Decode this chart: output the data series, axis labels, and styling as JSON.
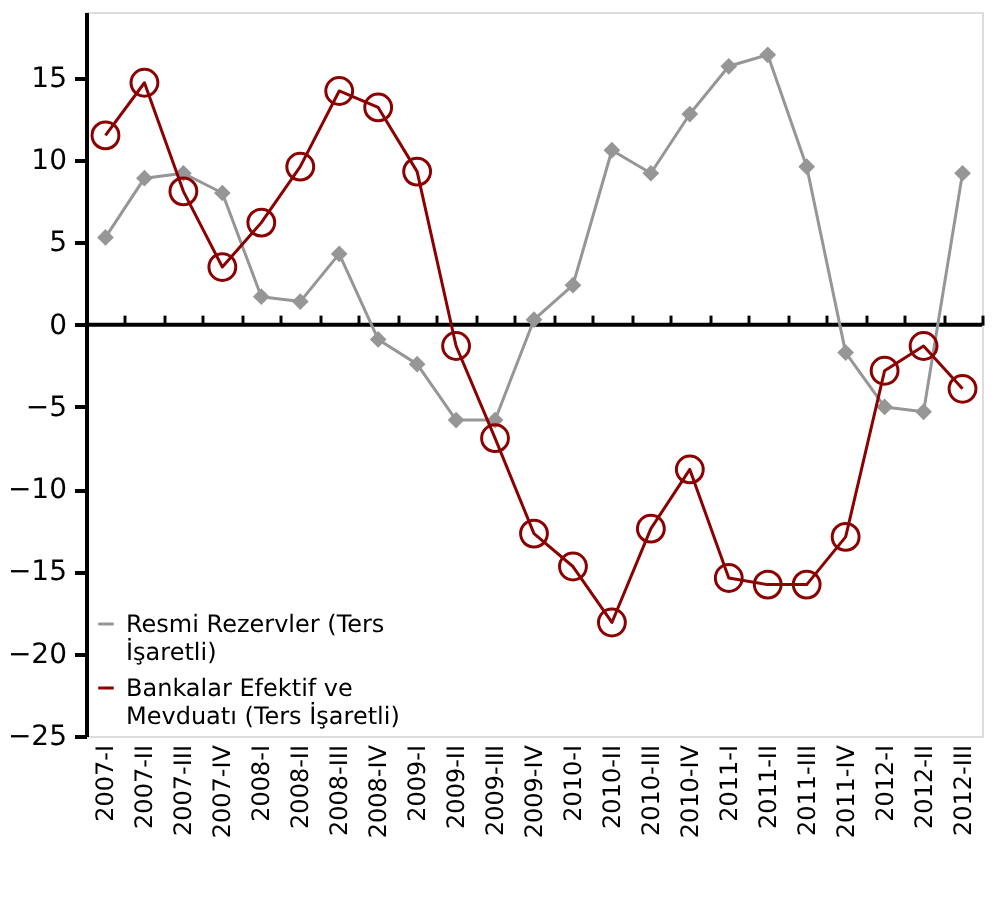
{
  "chart_data": {
    "type": "line",
    "categories": [
      "2007-I",
      "2007-II",
      "2007-III",
      "2007-IV",
      "2008-I",
      "2008-II",
      "2008-III",
      "2008-IV",
      "2009-I",
      "2009-II",
      "2009-III",
      "2009-IV",
      "2010-I",
      "2010-II",
      "2010-III",
      "2010-IV",
      "2011-I",
      "2011-II",
      "2011-III",
      "2011-IV",
      "2012-I",
      "2012-II",
      "2012-III"
    ],
    "series": [
      {
        "name": "Resmi Rezervler (Ters İşaretli)",
        "color": "#969696",
        "marker": "diamond",
        "values": [
          5.3,
          8.9,
          9.2,
          8.0,
          1.7,
          1.4,
          4.3,
          -0.9,
          -2.4,
          -5.8,
          -5.8,
          0.3,
          2.4,
          10.6,
          9.2,
          12.8,
          15.7,
          16.4,
          9.6,
          -1.7,
          -5.0,
          -5.3,
          9.2
        ]
      },
      {
        "name": "Bankalar Efektif ve Mevduatı (Ters İşaretli)",
        "color": "#8b0000",
        "marker": "circle",
        "values": [
          11.5,
          14.7,
          8.1,
          3.5,
          6.2,
          9.6,
          14.2,
          13.2,
          9.3,
          -1.3,
          -6.9,
          -12.7,
          -14.7,
          -18.1,
          -12.4,
          -8.8,
          -15.4,
          -15.8,
          -15.8,
          -12.9,
          -2.8,
          -1.3,
          -3.9
        ]
      }
    ],
    "ylim": [
      -25,
      19
    ],
    "yticks": [
      -25,
      -20,
      -15,
      -10,
      -5,
      0,
      5,
      10,
      15
    ],
    "grid": false,
    "ref_lines": [
      {
        "axis": "y",
        "value": 0,
        "color": "#000000",
        "line_style": "solid"
      }
    ],
    "legend": "bottom left",
    "line_style": "solid"
  }
}
